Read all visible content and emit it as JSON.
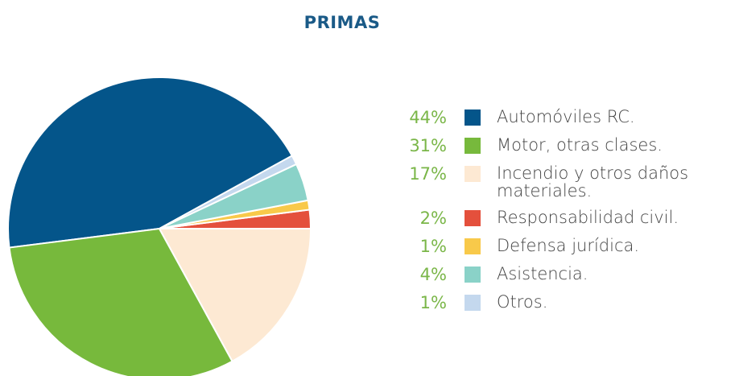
{
  "chart_data": {
    "type": "pie",
    "title": "PRIMAS",
    "categories": [
      "Automóviles RC.",
      "Motor, otras clases.",
      "Incendio y otros daños materiales.",
      "Responsabilidad civil.",
      "Defensa jurídica.",
      "Asistencia.",
      "Otros."
    ],
    "values": [
      44,
      31,
      17,
      2,
      1,
      4,
      1
    ],
    "value_labels": [
      "44%",
      "31%",
      "17%",
      "2%",
      "1%",
      "4%",
      "1%"
    ],
    "colors": [
      "#04558a",
      "#77b93c",
      "#fde9d3",
      "#e4503c",
      "#f8c94a",
      "#8ad2c8",
      "#c4d8ee"
    ],
    "legend": "right"
  }
}
